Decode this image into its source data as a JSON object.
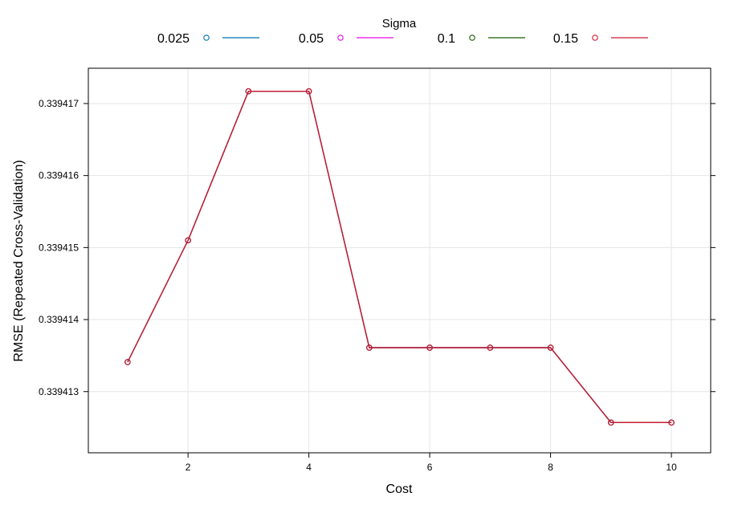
{
  "chart_data": {
    "type": "line",
    "title": "",
    "xlabel": "Cost",
    "ylabel": "RMSE (Repeated Cross-Validation)",
    "xlim": [
      0.35,
      10.65
    ],
    "ylim": [
      0.33941215,
      0.33941749
    ],
    "x_ticks": [
      2,
      4,
      6,
      8,
      10
    ],
    "x_tick_labels": [
      "2",
      "4",
      "6",
      "8",
      "10"
    ],
    "y_ticks": [
      0.339413,
      0.339414,
      0.339415,
      0.339416,
      0.339417
    ],
    "y_tick_labels": [
      "0.339413",
      "0.339414",
      "0.339415",
      "0.339416",
      "0.339417"
    ],
    "grid": true,
    "legend": {
      "title": "Sigma",
      "placement": "top",
      "entries": [
        "0.025",
        "0.05",
        "0.1",
        "0.15"
      ]
    },
    "x": [
      1,
      2,
      3,
      4,
      5,
      6,
      7,
      8,
      9,
      10
    ],
    "series": [
      {
        "name": "0.025",
        "color": "#0072b2",
        "values": [
          0.33941341,
          0.3394151,
          0.33941717,
          0.33941717,
          0.33941361,
          0.33941361,
          0.33941361,
          0.33941361,
          0.33941257,
          0.33941257
        ]
      },
      {
        "name": "0.05",
        "color": "#e60ae6",
        "values": [
          0.33941341,
          0.3394151,
          0.33941717,
          0.33941717,
          0.33941361,
          0.33941361,
          0.33941361,
          0.33941361,
          0.33941257,
          0.33941257
        ]
      },
      {
        "name": "0.1",
        "color": "#1a5c00",
        "values": [
          0.33941341,
          0.3394151,
          0.33941717,
          0.33941717,
          0.33941361,
          0.33941361,
          0.33941361,
          0.33941361,
          0.33941257,
          0.33941257
        ]
      },
      {
        "name": "0.15",
        "color": "#cc1a33",
        "values": [
          0.33941341,
          0.3394151,
          0.33941717,
          0.33941717,
          0.33941361,
          0.33941361,
          0.33941361,
          0.33941361,
          0.33941257,
          0.33941257
        ]
      }
    ]
  }
}
